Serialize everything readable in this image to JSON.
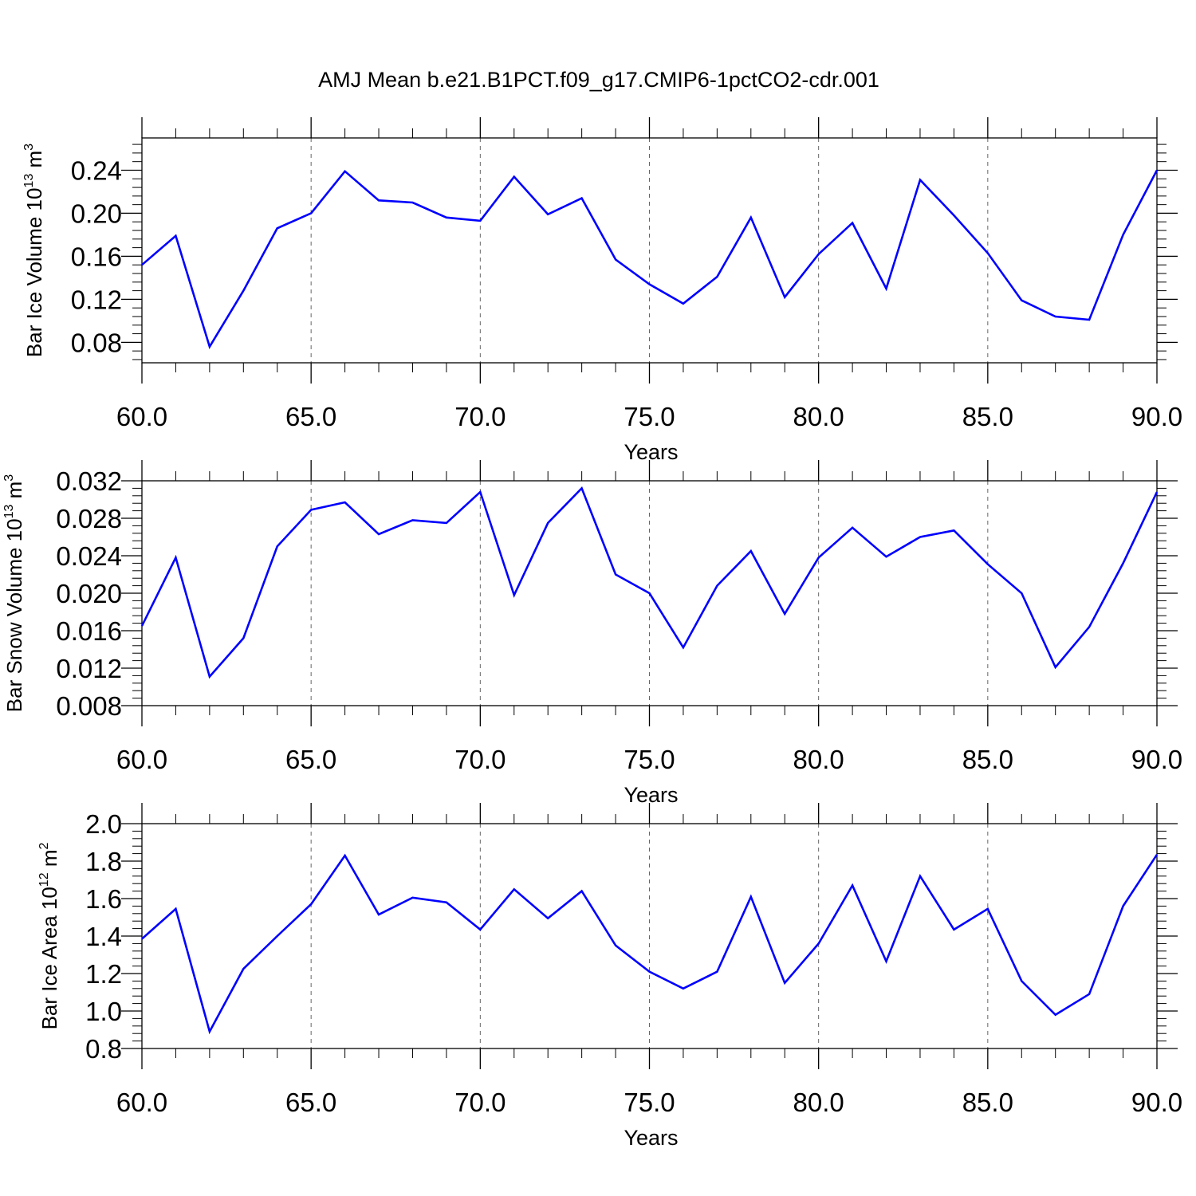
{
  "figure": {
    "title": "AMJ Mean b.e21.B1PCT.f09_g17.CMIP6-1pctCO2-cdr.001"
  },
  "line_color": "#0000ff",
  "chart_data": [
    {
      "type": "line",
      "xlabel": "Years",
      "ylabel": {
        "main": "Bar Ice Volume 10",
        "sup": "13",
        "after": " m",
        "unit_sup": "3"
      },
      "xlim": [
        60,
        90
      ],
      "ylim": [
        0.061,
        0.27
      ],
      "x_ticks": [
        60,
        65,
        70,
        75,
        80,
        85,
        90
      ],
      "x_tick_labels": [
        "60.0",
        "65.0",
        "70.0",
        "75.0",
        "80.0",
        "85.0",
        "90.0"
      ],
      "y_ticks": [
        0.08,
        0.12,
        0.16,
        0.2,
        0.24
      ],
      "y_tick_labels": [
        "0.08",
        "0.12",
        "0.16",
        "0.20",
        "0.24"
      ],
      "y_minor_step": 0.008,
      "grid": "vertical dashed at major x ticks",
      "x": [
        60,
        61,
        62,
        63,
        64,
        65,
        66,
        67,
        68,
        69,
        70,
        71,
        72,
        73,
        74,
        75,
        76,
        77,
        78,
        79,
        80,
        81,
        82,
        83,
        84,
        85,
        86,
        87,
        88,
        89,
        90
      ],
      "values": [
        0.152,
        0.179,
        0.076,
        0.128,
        0.186,
        0.2,
        0.239,
        0.212,
        0.21,
        0.196,
        0.193,
        0.234,
        0.199,
        0.214,
        0.157,
        0.134,
        0.116,
        0.141,
        0.196,
        0.122,
        0.162,
        0.191,
        0.13,
        0.231,
        0.198,
        0.163,
        0.119,
        0.104,
        0.101,
        0.18,
        0.24
      ]
    },
    {
      "type": "line",
      "xlabel": "Years",
      "ylabel": {
        "main": "Bar Snow Volume 10",
        "sup": "13",
        "after": " m",
        "unit_sup": "3"
      },
      "xlim": [
        60,
        90
      ],
      "ylim": [
        0.008,
        0.032
      ],
      "x_ticks": [
        60,
        65,
        70,
        75,
        80,
        85,
        90
      ],
      "x_tick_labels": [
        "60.0",
        "65.0",
        "70.0",
        "75.0",
        "80.0",
        "85.0",
        "90.0"
      ],
      "y_ticks": [
        0.008,
        0.012,
        0.016,
        0.02,
        0.024,
        0.028,
        0.032
      ],
      "y_tick_labels": [
        "0.008",
        "0.012",
        "0.016",
        "0.020",
        "0.024",
        "0.028",
        "0.032"
      ],
      "y_minor_step": 0.0008,
      "grid": "vertical dashed at major x ticks",
      "x": [
        60,
        61,
        62,
        63,
        64,
        65,
        66,
        67,
        68,
        69,
        70,
        71,
        72,
        73,
        74,
        75,
        76,
        77,
        78,
        79,
        80,
        81,
        82,
        83,
        84,
        85,
        86,
        87,
        88,
        89,
        90
      ],
      "values": [
        0.0165,
        0.0238,
        0.0111,
        0.0152,
        0.025,
        0.0289,
        0.0297,
        0.0263,
        0.0278,
        0.0275,
        0.0308,
        0.0198,
        0.0275,
        0.0312,
        0.022,
        0.02,
        0.0142,
        0.0208,
        0.0245,
        0.0178,
        0.0238,
        0.027,
        0.0239,
        0.026,
        0.0267,
        0.0231,
        0.02,
        0.0121,
        0.0164,
        0.0232,
        0.0308
      ]
    },
    {
      "type": "line",
      "xlabel": "Years",
      "ylabel": {
        "main": "Bar Ice Area 10",
        "sup": "12",
        "after": " m",
        "unit_sup": "2"
      },
      "xlim": [
        60,
        90
      ],
      "ylim": [
        0.8,
        2.0
      ],
      "x_ticks": [
        60,
        65,
        70,
        75,
        80,
        85,
        90
      ],
      "x_tick_labels": [
        "60.0",
        "65.0",
        "70.0",
        "75.0",
        "80.0",
        "85.0",
        "90.0"
      ],
      "y_ticks": [
        0.8,
        1.0,
        1.2,
        1.4,
        1.6,
        1.8,
        2.0
      ],
      "y_tick_labels": [
        "0.8",
        "1.0",
        "1.2",
        "1.4",
        "1.6",
        "1.8",
        "2.0"
      ],
      "y_minor_step": 0.04,
      "grid": "vertical dashed at major x ticks",
      "x": [
        60,
        61,
        62,
        63,
        64,
        65,
        66,
        67,
        68,
        69,
        70,
        71,
        72,
        73,
        74,
        75,
        76,
        77,
        78,
        79,
        80,
        81,
        82,
        83,
        84,
        85,
        86,
        87,
        88,
        89,
        90
      ],
      "values": [
        1.385,
        1.545,
        0.89,
        1.225,
        1.4,
        1.57,
        1.83,
        1.515,
        1.605,
        1.58,
        1.435,
        1.65,
        1.495,
        1.64,
        1.35,
        1.21,
        1.12,
        1.21,
        1.61,
        1.15,
        1.36,
        1.67,
        1.265,
        1.72,
        1.435,
        1.545,
        1.16,
        0.98,
        1.09,
        1.56,
        1.835
      ]
    }
  ]
}
